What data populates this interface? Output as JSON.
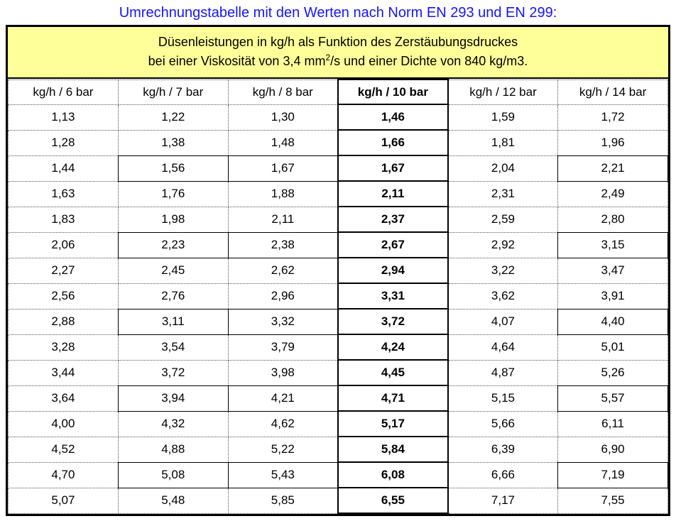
{
  "title": {
    "text": "Umrechnungstabelle mit den Werten nach Norm EN 293 und EN 299:",
    "color": "#1414ff"
  },
  "banner": {
    "background_color": "#ffff99",
    "line1": "Düsenleistungen in kg/h als Funktion des Zerstäubungsdruckes",
    "line2_pre": "bei einer Viskosität von 3,4 mm",
    "line2_sup": "2",
    "line2_post": "/s und einer Dichte von 840 kg/m3."
  },
  "table": {
    "headers": [
      {
        "pre": "kg/h / ",
        "unit": "6 bar",
        "bold": false
      },
      {
        "pre": "kg/h / ",
        "unit": "7 bar",
        "bold": false
      },
      {
        "pre": "kg/h / ",
        "unit": "8 bar",
        "bold": false
      },
      {
        "pre": "kg/h / ",
        "unit": "10 bar",
        "bold": true
      },
      {
        "pre": "kg/h / ",
        "unit": "12 bar",
        "bold": false
      },
      {
        "pre": "kg/h / ",
        "unit": "14 bar",
        "bold": false
      }
    ],
    "rows": [
      [
        "1,13",
        "1,22",
        "1,30",
        "1,46",
        "1,59",
        "1,72"
      ],
      [
        "1,28",
        "1,38",
        "1,48",
        "1,66",
        "1,81",
        "1,96"
      ],
      [
        "1,44",
        "1,56",
        "1,67",
        "1,67",
        "2,04",
        "2,21"
      ],
      [
        "1,63",
        "1,76",
        "1,88",
        "2,11",
        "2,31",
        "2,49"
      ],
      [
        "1,83",
        "1,98",
        "2,11",
        "2,37",
        "2,59",
        "2,80"
      ],
      [
        "2,06",
        "2,23",
        "2,38",
        "2,67",
        "2,92",
        "3,15"
      ],
      [
        "2,27",
        "2,45",
        "2,62",
        "2,94",
        "3,22",
        "3,47"
      ],
      [
        "2,56",
        "2,76",
        "2,96",
        "3,31",
        "3,62",
        "3,91"
      ],
      [
        "2,88",
        "3,11",
        "3,32",
        "3,72",
        "4,07",
        "4,40"
      ],
      [
        "3,28",
        "3,54",
        "3,79",
        "4,24",
        "4,64",
        "5,01"
      ],
      [
        "3,44",
        "3,72",
        "3,98",
        "4,45",
        "4,87",
        "5,26"
      ],
      [
        "3,64",
        "3,94",
        "4,21",
        "4,71",
        "5,15",
        "5,57"
      ],
      [
        "4,00",
        "4,32",
        "4,62",
        "5,17",
        "5,66",
        "6,11"
      ],
      [
        "4,52",
        "4,88",
        "5,22",
        "5,84",
        "6,39",
        "6,90"
      ],
      [
        "4,70",
        "5,08",
        "5,43",
        "6,08",
        "6,66",
        "7,19"
      ],
      [
        "5,07",
        "5,48",
        "5,85",
        "6,55",
        "7,17",
        "7,55"
      ]
    ],
    "style_hints": {
      "emphasized_col": 3,
      "boxed_rows": [
        2,
        5,
        8,
        11,
        14
      ],
      "boxed_cols": [
        1,
        2,
        5
      ]
    }
  }
}
